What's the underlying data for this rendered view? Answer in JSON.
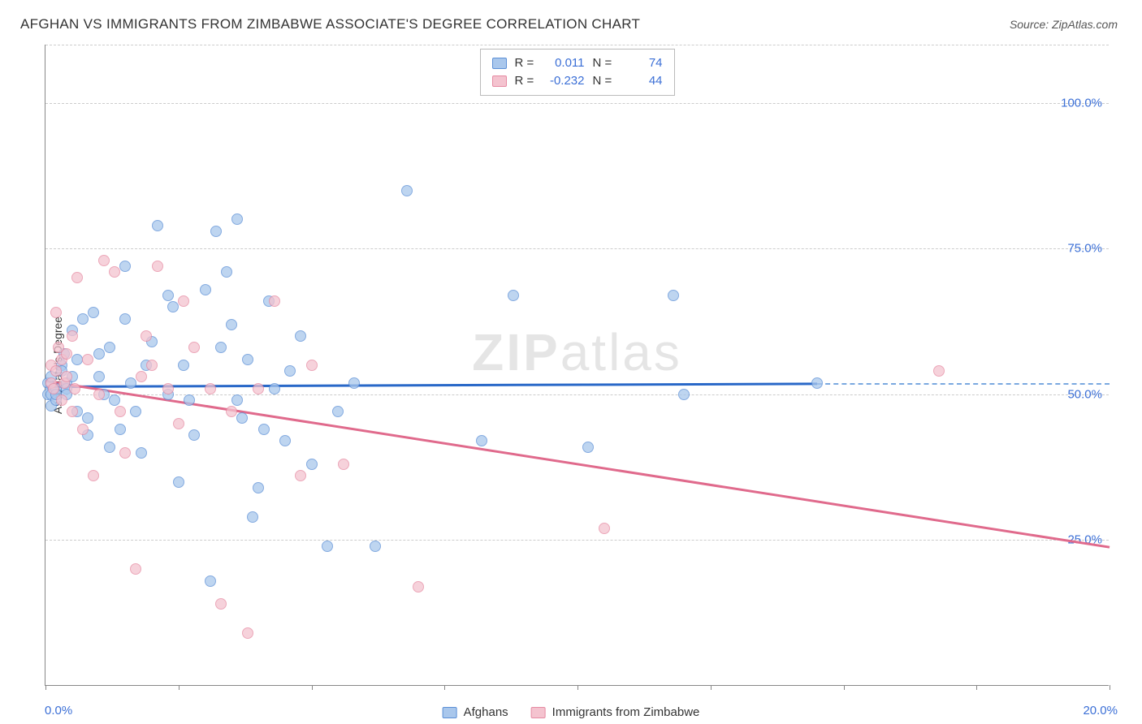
{
  "title": "AFGHAN VS IMMIGRANTS FROM ZIMBABWE ASSOCIATE'S DEGREE CORRELATION CHART",
  "source": "Source: ZipAtlas.com",
  "y_axis_label": "Associate's Degree",
  "watermark_bold": "ZIP",
  "watermark_light": "atlas",
  "chart": {
    "type": "scatter",
    "xlim": [
      0,
      20
    ],
    "ylim": [
      0,
      110
    ],
    "x_ticks": [
      0,
      2.5,
      5,
      7.5,
      10,
      12.5,
      15,
      17.5,
      20
    ],
    "x_labels": [
      {
        "val": 0,
        "text": "0.0%"
      },
      {
        "val": 20,
        "text": "20.0%"
      }
    ],
    "y_gridlines": [
      25,
      50,
      75,
      100,
      110
    ],
    "y_labels": [
      {
        "val": 25,
        "text": "25.0%"
      },
      {
        "val": 50,
        "text": "50.0%"
      },
      {
        "val": 75,
        "text": "75.0%"
      },
      {
        "val": 100,
        "text": "100.0%"
      }
    ],
    "background_color": "#ffffff",
    "grid_color": "#cccccc",
    "axis_color": "#888888",
    "label_color": "#3b6fd6",
    "marker_radius": 7
  },
  "series": [
    {
      "name": "Afghans",
      "color_fill": "#a9c7ec",
      "color_stroke": "#5b8fd6",
      "trend_color": "#2968c8",
      "R": "0.011",
      "N": "74",
      "trend": {
        "x0": 0,
        "y0": 51.5,
        "x1": 14.5,
        "y1": 52.0,
        "dashed_to": 20,
        "dashed_y": 52.0
      },
      "points": [
        [
          0.05,
          50
        ],
        [
          0.05,
          52
        ],
        [
          0.1,
          50
        ],
        [
          0.1,
          53
        ],
        [
          0.1,
          48
        ],
        [
          0.2,
          51
        ],
        [
          0.2,
          49
        ],
        [
          0.3,
          55
        ],
        [
          0.3,
          54
        ],
        [
          0.35,
          57
        ],
        [
          0.4,
          52
        ],
        [
          0.4,
          51
        ],
        [
          0.4,
          50
        ],
        [
          0.5,
          53
        ],
        [
          0.5,
          61
        ],
        [
          0.6,
          47
        ],
        [
          0.6,
          56
        ],
        [
          0.7,
          63
        ],
        [
          0.8,
          43
        ],
        [
          0.8,
          46
        ],
        [
          0.9,
          64
        ],
        [
          1.0,
          57
        ],
        [
          1.0,
          53
        ],
        [
          1.1,
          50
        ],
        [
          1.2,
          58
        ],
        [
          1.2,
          41
        ],
        [
          1.3,
          49
        ],
        [
          1.4,
          44
        ],
        [
          1.5,
          72
        ],
        [
          1.5,
          63
        ],
        [
          1.6,
          52
        ],
        [
          1.7,
          47
        ],
        [
          1.8,
          40
        ],
        [
          1.9,
          55
        ],
        [
          2.0,
          59
        ],
        [
          2.1,
          79
        ],
        [
          2.3,
          50
        ],
        [
          2.3,
          67
        ],
        [
          2.4,
          65
        ],
        [
          2.5,
          35
        ],
        [
          2.6,
          55
        ],
        [
          2.7,
          49
        ],
        [
          2.8,
          43
        ],
        [
          3.0,
          68
        ],
        [
          3.1,
          18
        ],
        [
          3.2,
          78
        ],
        [
          3.3,
          58
        ],
        [
          3.4,
          71
        ],
        [
          3.5,
          62
        ],
        [
          3.6,
          80
        ],
        [
          3.6,
          49
        ],
        [
          3.7,
          46
        ],
        [
          3.8,
          56
        ],
        [
          3.9,
          29
        ],
        [
          4.0,
          34
        ],
        [
          4.1,
          44
        ],
        [
          4.2,
          66
        ],
        [
          4.3,
          51
        ],
        [
          4.5,
          42
        ],
        [
          4.6,
          54
        ],
        [
          4.8,
          60
        ],
        [
          5.0,
          38
        ],
        [
          5.3,
          24
        ],
        [
          5.5,
          47
        ],
        [
          5.8,
          52
        ],
        [
          6.2,
          24
        ],
        [
          6.8,
          85
        ],
        [
          8.2,
          42
        ],
        [
          8.8,
          67
        ],
        [
          10.2,
          41
        ],
        [
          11.8,
          67
        ],
        [
          12.0,
          50
        ],
        [
          14.5,
          52
        ],
        [
          0.2,
          50
        ]
      ]
    },
    {
      "name": "Immigrants from Zimbabwe",
      "color_fill": "#f4c3cf",
      "color_stroke": "#e68aa2",
      "trend_color": "#e06a8c",
      "R": "-0.232",
      "N": "44",
      "trend": {
        "x0": 0,
        "y0": 52.5,
        "x1": 20,
        "y1": 24.0
      },
      "points": [
        [
          0.1,
          52
        ],
        [
          0.1,
          55
        ],
        [
          0.15,
          51
        ],
        [
          0.2,
          54
        ],
        [
          0.2,
          64
        ],
        [
          0.25,
          58
        ],
        [
          0.3,
          56
        ],
        [
          0.3,
          49
        ],
        [
          0.35,
          52
        ],
        [
          0.4,
          53
        ],
        [
          0.4,
          57
        ],
        [
          0.5,
          60
        ],
        [
          0.5,
          47
        ],
        [
          0.55,
          51
        ],
        [
          0.6,
          70
        ],
        [
          0.7,
          44
        ],
        [
          0.8,
          56
        ],
        [
          0.9,
          36
        ],
        [
          1.0,
          50
        ],
        [
          1.1,
          73
        ],
        [
          1.3,
          71
        ],
        [
          1.4,
          47
        ],
        [
          1.5,
          40
        ],
        [
          1.7,
          20
        ],
        [
          1.8,
          53
        ],
        [
          1.9,
          60
        ],
        [
          2.0,
          55
        ],
        [
          2.3,
          51
        ],
        [
          2.5,
          45
        ],
        [
          2.6,
          66
        ],
        [
          2.8,
          58
        ],
        [
          3.1,
          51
        ],
        [
          3.3,
          14
        ],
        [
          3.5,
          47
        ],
        [
          3.8,
          9
        ],
        [
          4.0,
          51
        ],
        [
          4.3,
          66
        ],
        [
          4.8,
          36
        ],
        [
          5.0,
          55
        ],
        [
          5.6,
          38
        ],
        [
          7.0,
          17
        ],
        [
          10.5,
          27
        ],
        [
          16.8,
          54
        ],
        [
          2.1,
          72
        ]
      ]
    }
  ],
  "stats_labels": {
    "R": "R =",
    "N": "N ="
  },
  "legend": [
    {
      "swatch": "blue",
      "text": "Afghans"
    },
    {
      "swatch": "pink",
      "text": "Immigrants from Zimbabwe"
    }
  ]
}
